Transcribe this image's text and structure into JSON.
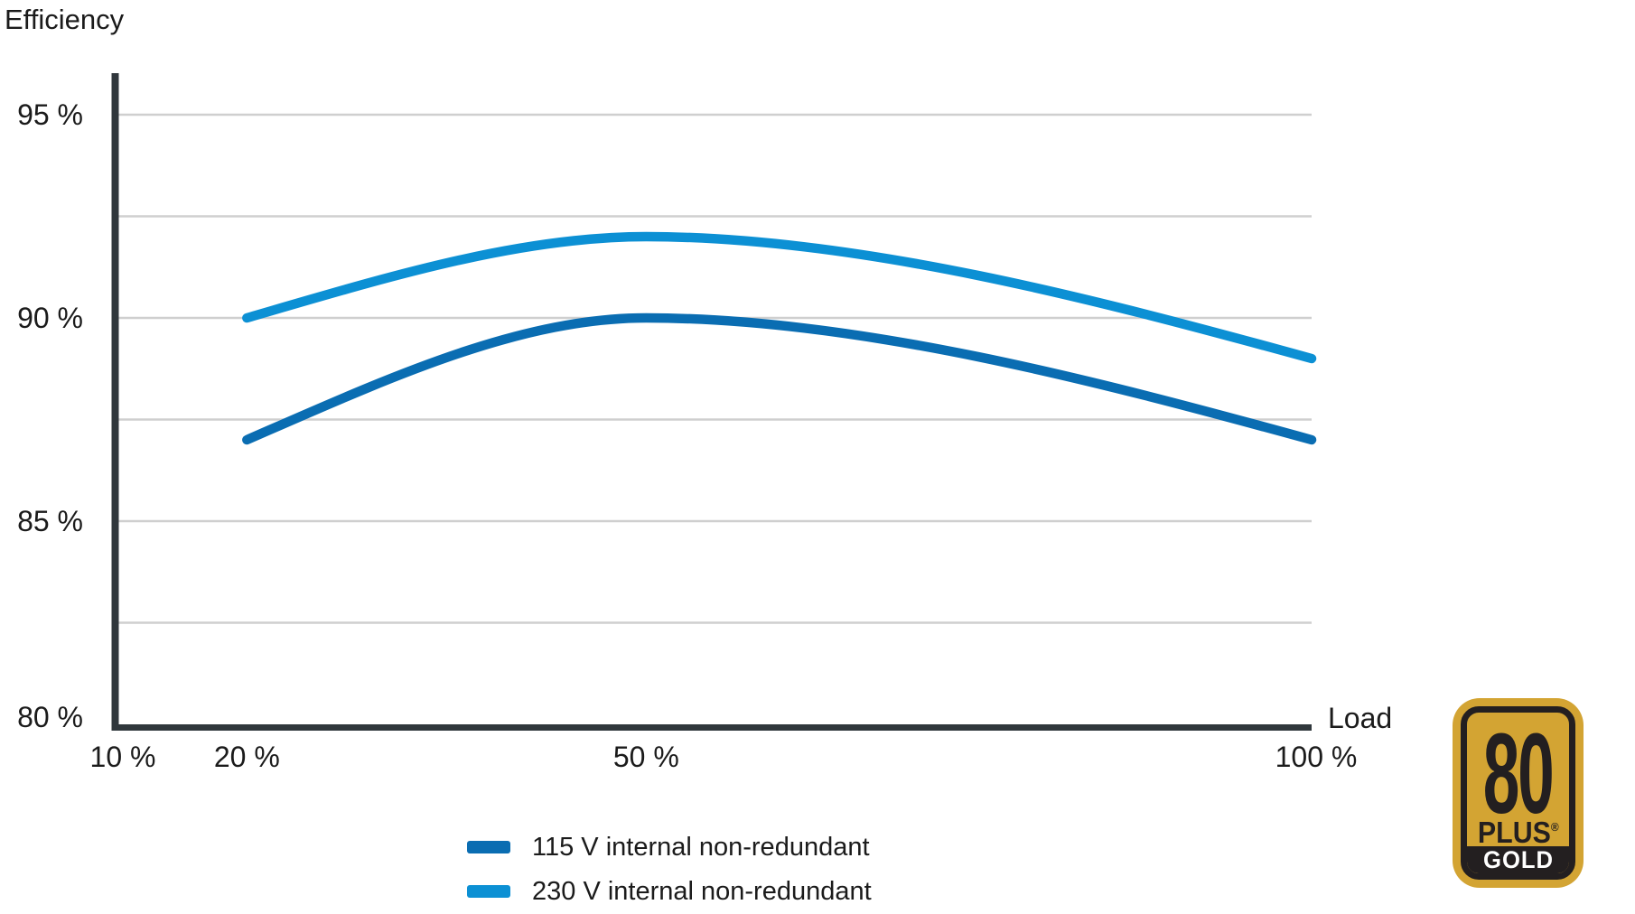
{
  "chart_data": {
    "type": "line",
    "title": "",
    "ylabel": "Efficiency",
    "xlabel": "Load",
    "xlim": [
      10,
      100
    ],
    "ylim": [
      80,
      96
    ],
    "grid": "horizontal gridlines only",
    "gridline_values": [
      95,
      92.5,
      90,
      87.5,
      85,
      82.5
    ],
    "legend_position": "below chart, bottom-left",
    "x_ticks": [
      {
        "value": 10,
        "label": "10 %"
      },
      {
        "value": 20,
        "label": "20 %"
      },
      {
        "value": 50,
        "label": "50 %"
      },
      {
        "value": 100,
        "label": "100 %"
      }
    ],
    "y_ticks": [
      {
        "value": 95,
        "label": "95 %"
      },
      {
        "value": 90,
        "label": "90 %"
      },
      {
        "value": 85,
        "label": "85 %"
      },
      {
        "value": 80,
        "label": "80 %"
      }
    ],
    "x": [
      20,
      50,
      100
    ],
    "series": [
      {
        "name": "115 V internal non-redundant",
        "color": "#0A6DB2",
        "values": [
          87,
          90,
          87
        ]
      },
      {
        "name": "230 V internal non-redundant",
        "color": "#0C90D4",
        "values": [
          90,
          92,
          89
        ]
      }
    ]
  },
  "badge": {
    "number": "80",
    "plus": "PLUS",
    "registered": "®",
    "tier": "GOLD",
    "gold_color": "#D3A433",
    "dark_color": "#231F20",
    "tier_text_color": "#FFFFFF"
  },
  "colors": {
    "background": "#FFFFFF",
    "axis": "#30373C",
    "gridline": "#CFCFCF",
    "text": "#1B1B1B"
  }
}
